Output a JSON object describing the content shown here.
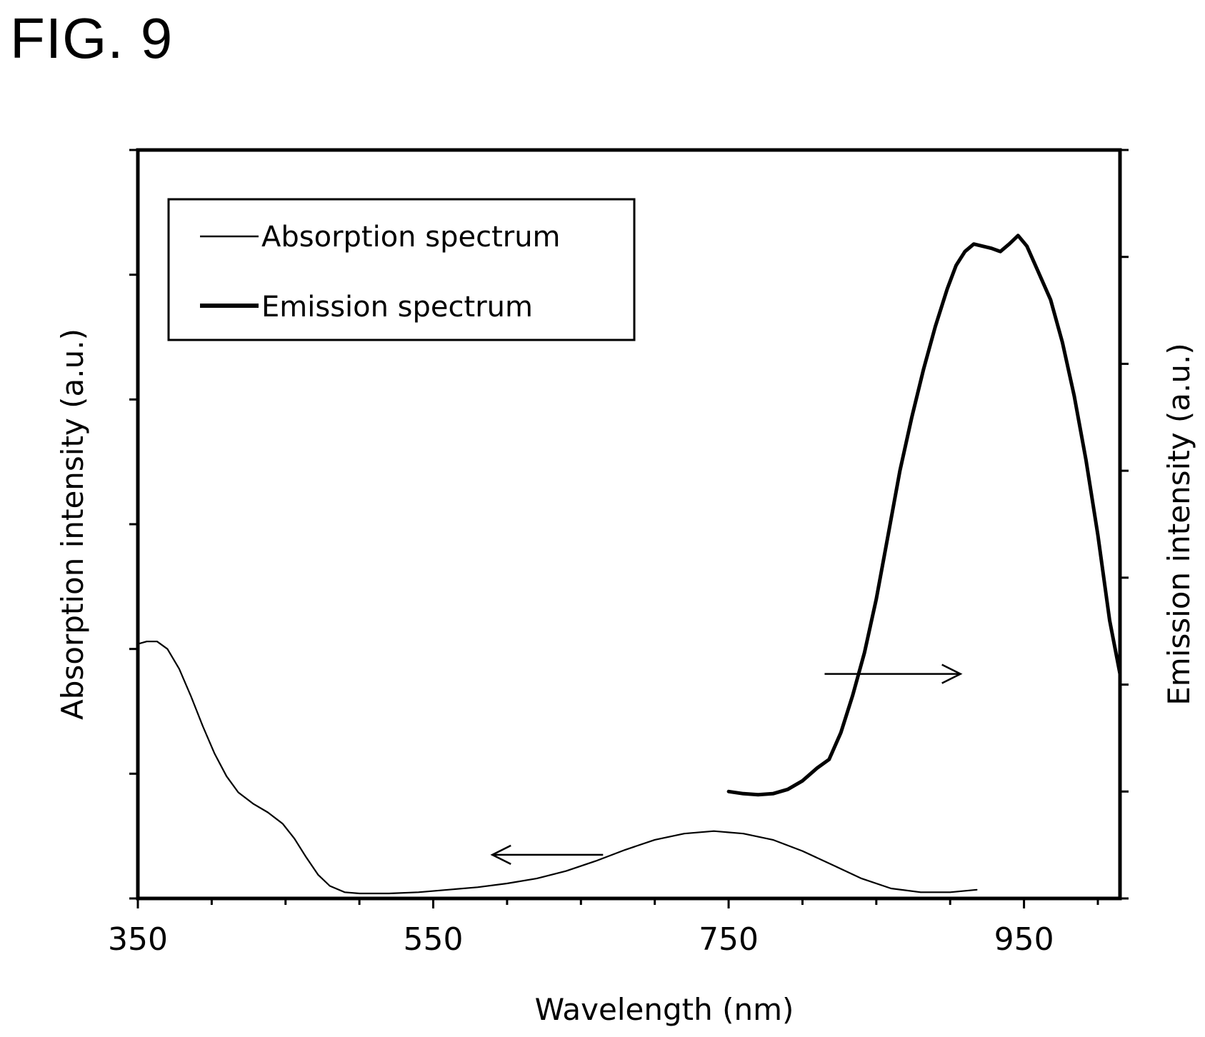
{
  "figure_label": "FIG. 9",
  "chart_data": {
    "type": "line",
    "title": "",
    "xlabel": "Wavelength (nm)",
    "ylabel_left": "Absorption intensity (a.u.)",
    "ylabel_right": "Emission intensity (a.u.)",
    "xlim": [
      350,
      1015
    ],
    "x_ticks": [
      350,
      550,
      750,
      950
    ],
    "y_left_range": [
      0,
      6
    ],
    "y_right_range": [
      0,
      7
    ],
    "grid": false,
    "legend_position": "top-left",
    "series": [
      {
        "name": "Absorption spectrum",
        "axis": "left",
        "line_weight": "thin",
        "points": [
          [
            350,
            2.04
          ],
          [
            356,
            2.06
          ],
          [
            363,
            2.06
          ],
          [
            370,
            2.0
          ],
          [
            378,
            1.84
          ],
          [
            386,
            1.62
          ],
          [
            394,
            1.38
          ],
          [
            402,
            1.16
          ],
          [
            410,
            0.98
          ],
          [
            418,
            0.85
          ],
          [
            428,
            0.76
          ],
          [
            438,
            0.69
          ],
          [
            448,
            0.6
          ],
          [
            456,
            0.48
          ],
          [
            464,
            0.33
          ],
          [
            472,
            0.19
          ],
          [
            480,
            0.1
          ],
          [
            490,
            0.05
          ],
          [
            500,
            0.04
          ],
          [
            520,
            0.04
          ],
          [
            540,
            0.05
          ],
          [
            560,
            0.07
          ],
          [
            580,
            0.09
          ],
          [
            600,
            0.12
          ],
          [
            620,
            0.16
          ],
          [
            640,
            0.22
          ],
          [
            660,
            0.3
          ],
          [
            680,
            0.39
          ],
          [
            700,
            0.47
          ],
          [
            720,
            0.52
          ],
          [
            740,
            0.54
          ],
          [
            760,
            0.52
          ],
          [
            780,
            0.47
          ],
          [
            800,
            0.38
          ],
          [
            820,
            0.27
          ],
          [
            840,
            0.16
          ],
          [
            860,
            0.08
          ],
          [
            880,
            0.05
          ],
          [
            900,
            0.05
          ],
          [
            918,
            0.07
          ]
        ]
      },
      {
        "name": "Emission spectrum",
        "axis": "right",
        "line_weight": "thick",
        "points": [
          [
            750,
            1.0
          ],
          [
            760,
            0.98
          ],
          [
            770,
            0.97
          ],
          [
            780,
            0.98
          ],
          [
            790,
            1.02
          ],
          [
            800,
            1.1
          ],
          [
            810,
            1.22
          ],
          [
            818,
            1.3
          ],
          [
            826,
            1.55
          ],
          [
            834,
            1.9
          ],
          [
            842,
            2.3
          ],
          [
            850,
            2.8
          ],
          [
            858,
            3.4
          ],
          [
            866,
            4.0
          ],
          [
            874,
            4.5
          ],
          [
            882,
            4.95
          ],
          [
            890,
            5.35
          ],
          [
            898,
            5.7
          ],
          [
            904,
            5.92
          ],
          [
            910,
            6.05
          ],
          [
            916,
            6.12
          ],
          [
            922,
            6.1
          ],
          [
            928,
            6.08
          ],
          [
            934,
            6.05
          ],
          [
            940,
            6.12
          ],
          [
            946,
            6.2
          ],
          [
            952,
            6.1
          ],
          [
            960,
            5.85
          ],
          [
            968,
            5.6
          ],
          [
            976,
            5.2
          ],
          [
            984,
            4.7
          ],
          [
            992,
            4.1
          ],
          [
            1000,
            3.4
          ],
          [
            1008,
            2.6
          ],
          [
            1015,
            2.1
          ]
        ]
      }
    ],
    "annotations": [
      {
        "type": "arrow",
        "direction": "left",
        "from_x": 665,
        "to_x": 590,
        "axis": "left",
        "y": 0.35
      },
      {
        "type": "arrow",
        "direction": "right",
        "from_x": 815,
        "to_x": 907,
        "axis": "right",
        "y": 2.1
      }
    ]
  }
}
